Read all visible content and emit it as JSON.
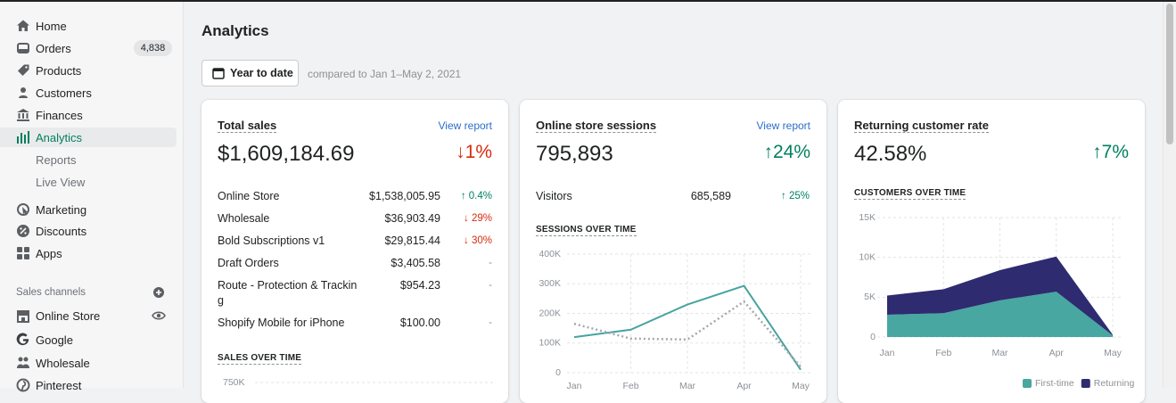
{
  "sidebar": {
    "nav": [
      {
        "label": "Home"
      },
      {
        "label": "Orders",
        "badge": "4,838"
      },
      {
        "label": "Products"
      },
      {
        "label": "Customers"
      },
      {
        "label": "Finances"
      },
      {
        "label": "Analytics"
      },
      {
        "label": "Reports"
      },
      {
        "label": "Live View"
      },
      {
        "label": "Marketing"
      },
      {
        "label": "Discounts"
      },
      {
        "label": "Apps"
      }
    ],
    "sales_channels": {
      "title": "Sales channels",
      "items": [
        "Online Store",
        "Google",
        "Wholesale",
        "Pinterest"
      ]
    }
  },
  "header": {
    "title": "Analytics",
    "date_button": "Year to date",
    "comparison": "compared to Jan 1–May 2, 2021"
  },
  "cards": [
    {
      "title": "Total sales",
      "link": "View report",
      "value": "$1,609,184.69",
      "change": "↓1%",
      "rows": [
        [
          "Online Store",
          "$1,538,005.95",
          "↑ 0.4%"
        ],
        [
          "Wholesale",
          "$36,903.49",
          "↓ 29%"
        ],
        [
          "Bold Subscriptions v1",
          "$29,815.44",
          "↓ 30%"
        ],
        [
          "Draft Orders",
          "$3,405.58",
          "-"
        ],
        [
          "Route - Protection & Tracking",
          "$954.23",
          "-"
        ],
        [
          "Shopify Mobile for iPhone",
          "$100.00",
          "-"
        ]
      ],
      "chart": {
        "type": "line",
        "title": "SALES OVER TIME",
        "ylim": [
          0,
          750000
        ],
        "yticks": [
          {
            "value": 750000,
            "label": "750K"
          }
        ]
      }
    },
    {
      "title": "Online store sessions",
      "link": "View report",
      "value": "795,893",
      "change": "↑24%",
      "rows": [
        [
          "Visitors",
          "685,589",
          "↑ 25%"
        ]
      ],
      "chart": {
        "type": "line",
        "title": "SESSIONS OVER TIME",
        "categories": [
          "Jan",
          "Feb",
          "Mar",
          "Apr",
          "May"
        ],
        "ylim": [
          0,
          400000
        ],
        "yticks": [
          0,
          {
            "value": 100000,
            "label": "100K"
          },
          {
            "value": 200000,
            "label": "200K"
          },
          {
            "value": 300000,
            "label": "300K"
          },
          {
            "value": 400000,
            "label": "400K"
          }
        ],
        "series": [
          {
            "color": "#47a3a0",
            "style": "solid",
            "values": [
              120000,
              145000,
              230000,
              293000,
              10000
            ]
          },
          {
            "color": "#a4a8ac",
            "style": "dotted",
            "values": [
              165000,
              115000,
              112000,
              240000,
              20000
            ]
          }
        ]
      }
    },
    {
      "title": "Returning customer rate",
      "value": "42.58%",
      "change": "↑7%",
      "chart": {
        "type": "stacked-area",
        "title": "CUSTOMERS OVER TIME",
        "categories": [
          "Jan",
          "Feb",
          "Mar",
          "Apr",
          "May"
        ],
        "ylim": [
          0,
          15000
        ],
        "yticks": [
          0,
          {
            "value": 5000,
            "label": "5K"
          },
          {
            "value": 10000,
            "label": "10K"
          },
          {
            "value": 15000,
            "label": "15K"
          }
        ],
        "series": [
          {
            "name": "First-time",
            "color": "#48a7a1",
            "values": [
              2800,
              3000,
              4600,
              5700,
              200
            ]
          },
          {
            "name": "Returning",
            "color": "#2e2b70",
            "values": [
              2400,
              3000,
              3800,
              4400,
              100
            ]
          }
        ]
      }
    }
  ]
}
